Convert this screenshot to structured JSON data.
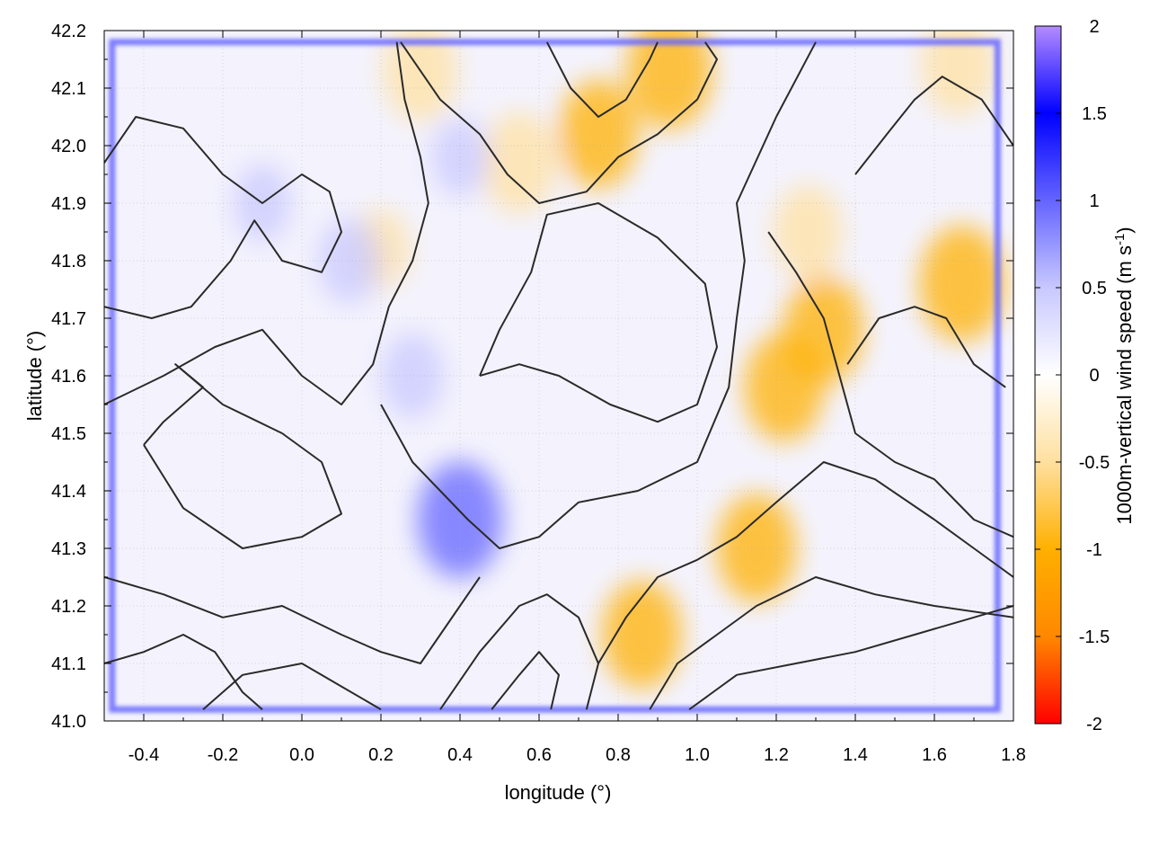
{
  "chart_data": {
    "type": "heatmap",
    "title": "",
    "xlabel": "longitude (°)",
    "ylabel": "latitude (°)",
    "colorbar_label_main": "1000m-vertical wind speed (m s",
    "colorbar_label_sup": "-1",
    "colorbar_label_close": ")",
    "xlim": [
      -0.5,
      1.8
    ],
    "ylim": [
      41.0,
      42.2
    ],
    "x_ticks": [
      "-0.4",
      "-0.2",
      "0.0",
      "0.2",
      "0.4",
      "0.6",
      "0.8",
      "1.0",
      "1.2",
      "1.4",
      "1.6",
      "1.8"
    ],
    "y_ticks": [
      "41.0",
      "41.1",
      "41.2",
      "41.3",
      "41.4",
      "41.5",
      "41.6",
      "41.7",
      "41.8",
      "41.9",
      "42.0",
      "42.1",
      "42.2"
    ],
    "colorbar_ticks": [
      "2",
      "1.5",
      "1",
      "0.5",
      "0",
      "-0.5",
      "-1",
      "-1.5",
      "-2"
    ],
    "colorbar_range": [
      -2,
      2
    ],
    "grid": true,
    "colormap": [
      "#ff0000",
      "#ff8800",
      "#ffb000",
      "#ffe0a0",
      "#ffffff",
      "#c8c8ff",
      "#6464ff",
      "#0000ff",
      "#b48cff"
    ],
    "contour_color": "#2a2a2a",
    "features": {
      "updraft_hotspots_negative": [
        {
          "lon": 0.93,
          "lat": 42.13,
          "value": -0.9
        },
        {
          "lon": 0.75,
          "lat": 42.02,
          "value": -0.8
        },
        {
          "lon": 0.55,
          "lat": 41.97,
          "value": -0.7
        },
        {
          "lon": 0.3,
          "lat": 42.13,
          "value": -0.7
        },
        {
          "lon": 1.66,
          "lat": 42.14,
          "value": -0.7
        },
        {
          "lon": 1.67,
          "lat": 41.76,
          "value": -0.9
        },
        {
          "lon": 1.32,
          "lat": 41.68,
          "value": -0.8
        },
        {
          "lon": 1.22,
          "lat": 41.58,
          "value": -0.8
        },
        {
          "lon": 1.28,
          "lat": 41.85,
          "value": -0.6
        },
        {
          "lon": 1.15,
          "lat": 41.3,
          "value": -0.8
        },
        {
          "lon": 0.86,
          "lat": 41.15,
          "value": -0.8
        },
        {
          "lon": 0.2,
          "lat": 41.82,
          "value": -0.4
        }
      ],
      "downdraft_hotspots_positive": [
        {
          "lon": 0.4,
          "lat": 41.35,
          "value": 0.9
        },
        {
          "lon": 0.28,
          "lat": 41.6,
          "value": 0.5
        },
        {
          "lon": 0.12,
          "lat": 41.8,
          "value": 0.5
        },
        {
          "lon": 0.4,
          "lat": 41.98,
          "value": 0.4
        },
        {
          "lon": -0.1,
          "lat": 41.9,
          "value": 0.4
        }
      ]
    }
  }
}
